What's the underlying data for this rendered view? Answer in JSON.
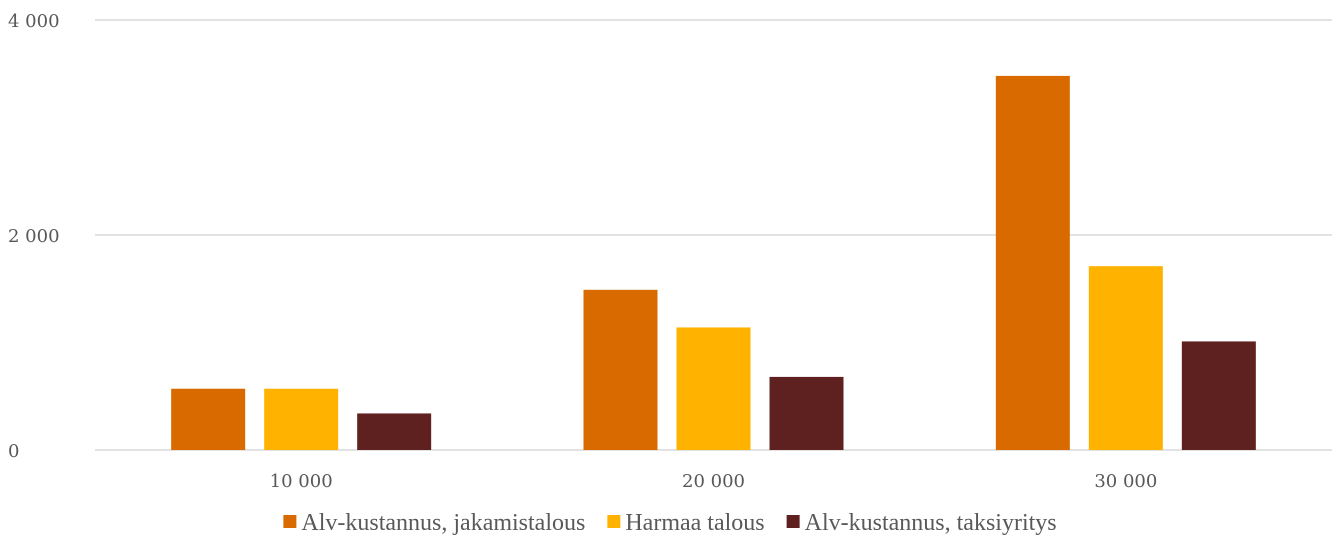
{
  "chart_data": {
    "type": "bar",
    "categories": [
      "10 000",
      "20 000",
      "30 000"
    ],
    "series": [
      {
        "name": "Alv-kustannus, jakamistalous",
        "color": "#D96A00",
        "values": [
          570,
          1490,
          3480
        ]
      },
      {
        "name": "Harmaa talous",
        "color": "#FFB300",
        "values": [
          570,
          1140,
          1710
        ]
      },
      {
        "name": "Alv-kustannus, taksiyritys",
        "color": "#5E2120",
        "values": [
          340,
          680,
          1010
        ]
      }
    ],
    "ylim": [
      0,
      4000
    ],
    "yticks": [
      0,
      2000,
      4000
    ],
    "ytick_labels": [
      "0",
      "2 000",
      "4 000"
    ],
    "grid": true,
    "legend_position": "bottom",
    "title": "",
    "xlabel": "",
    "ylabel": ""
  }
}
